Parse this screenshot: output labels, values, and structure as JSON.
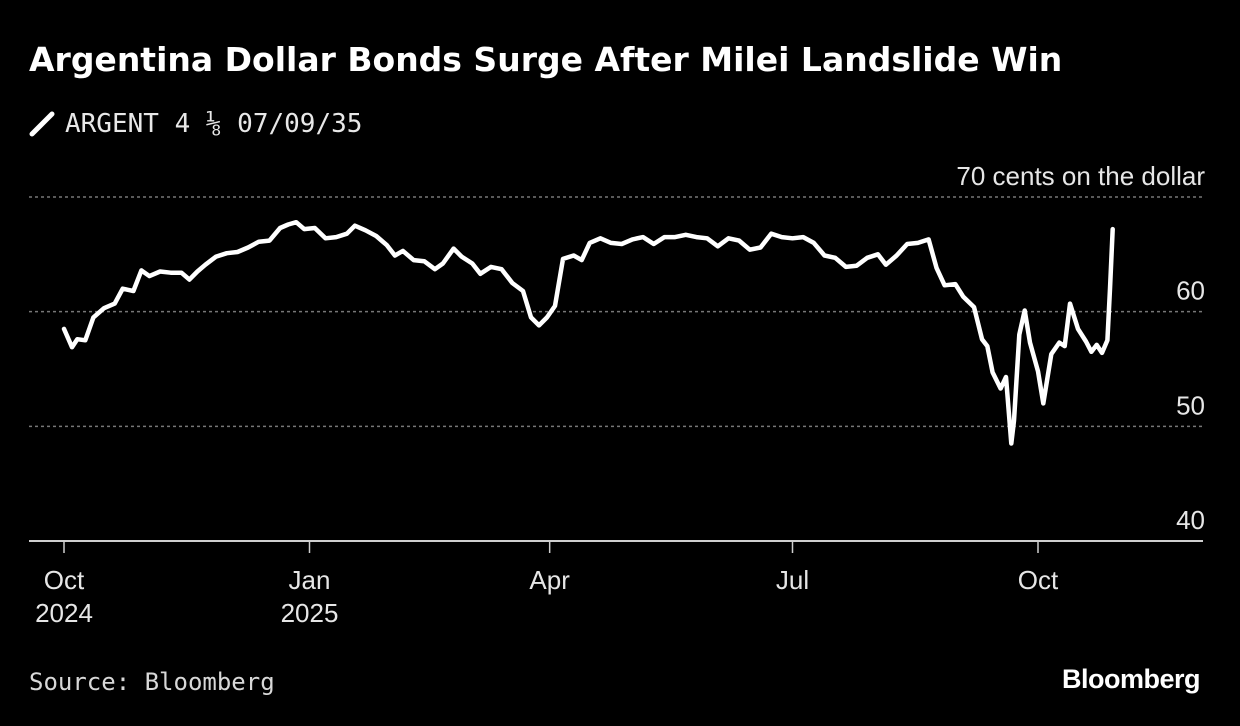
{
  "header": {
    "title": "Argentina Dollar Bonds Surge After Milei Landslide Win"
  },
  "legend": {
    "label": "ARGENT 4 ⅛ 07/09/35"
  },
  "footer": {
    "source": "Source: Bloomberg",
    "brand": "Bloomberg"
  },
  "colors": {
    "background": "#000000",
    "line": "#ffffff",
    "grid": "#777777"
  },
  "chart_data": {
    "type": "line",
    "title": "Argentina Dollar Bonds Surge After Milei Landslide Win",
    "unit_label": "70 cents on the dollar",
    "ylim": [
      40,
      70
    ],
    "yticks": [
      {
        "value": 70,
        "label": "70 cents on the dollar"
      },
      {
        "value": 60,
        "label": "60"
      },
      {
        "value": 50,
        "label": "50"
      },
      {
        "value": 40,
        "label": "40"
      }
    ],
    "grid": "horizontal dotted",
    "xlim": [
      "2024-09-15",
      "2025-11-15"
    ],
    "xticks": [
      {
        "date": "2024-10-01",
        "label": [
          "Oct",
          "2024"
        ]
      },
      {
        "date": "2025-01-01",
        "label": [
          "Jan",
          "2025"
        ]
      },
      {
        "date": "2025-04-01",
        "label": [
          "Apr",
          ""
        ]
      },
      {
        "date": "2025-07-01",
        "label": [
          "Jul",
          ""
        ]
      },
      {
        "date": "2025-10-01",
        "label": [
          "Oct",
          ""
        ]
      }
    ],
    "series": [
      {
        "name": "ARGENT 4 ⅛ 07/09/35",
        "points": [
          [
            "2024-10-01",
            58.5
          ],
          [
            "2024-10-04",
            56.9
          ],
          [
            "2024-10-06",
            57.6
          ],
          [
            "2024-10-09",
            57.5
          ],
          [
            "2024-10-12",
            59.5
          ],
          [
            "2024-10-16",
            60.3
          ],
          [
            "2024-10-20",
            60.7
          ],
          [
            "2024-10-23",
            62.0
          ],
          [
            "2024-10-27",
            61.8
          ],
          [
            "2024-10-30",
            63.6
          ],
          [
            "2024-11-02",
            63.1
          ],
          [
            "2024-11-06",
            63.5
          ],
          [
            "2024-11-10",
            63.4
          ],
          [
            "2024-11-14",
            63.4
          ],
          [
            "2024-11-17",
            62.8
          ],
          [
            "2024-11-20",
            63.5
          ],
          [
            "2024-11-23",
            64.1
          ],
          [
            "2024-11-27",
            64.8
          ],
          [
            "2024-12-01",
            65.1
          ],
          [
            "2024-12-05",
            65.2
          ],
          [
            "2024-12-09",
            65.6
          ],
          [
            "2024-12-13",
            66.1
          ],
          [
            "2024-12-17",
            66.2
          ],
          [
            "2024-12-21",
            67.3
          ],
          [
            "2024-12-24",
            67.6
          ],
          [
            "2024-12-27",
            67.8
          ],
          [
            "2024-12-30",
            67.2
          ],
          [
            "2025-01-03",
            67.3
          ],
          [
            "2025-01-07",
            66.4
          ],
          [
            "2025-01-11",
            66.5
          ],
          [
            "2025-01-15",
            66.8
          ],
          [
            "2025-01-18",
            67.5
          ],
          [
            "2025-01-22",
            67.1
          ],
          [
            "2025-01-26",
            66.6
          ],
          [
            "2025-01-30",
            65.8
          ],
          [
            "2025-02-02",
            64.9
          ],
          [
            "2025-02-05",
            65.3
          ],
          [
            "2025-02-09",
            64.5
          ],
          [
            "2025-02-13",
            64.4
          ],
          [
            "2025-02-17",
            63.7
          ],
          [
            "2025-02-20",
            64.2
          ],
          [
            "2025-02-24",
            65.5
          ],
          [
            "2025-02-27",
            64.8
          ],
          [
            "2025-03-03",
            64.2
          ],
          [
            "2025-03-06",
            63.3
          ],
          [
            "2025-03-10",
            63.9
          ],
          [
            "2025-03-14",
            63.7
          ],
          [
            "2025-03-18",
            62.5
          ],
          [
            "2025-03-22",
            61.8
          ],
          [
            "2025-03-25",
            59.5
          ],
          [
            "2025-03-28",
            58.8
          ],
          [
            "2025-03-31",
            59.5
          ],
          [
            "2025-04-03",
            60.5
          ],
          [
            "2025-04-06",
            64.6
          ],
          [
            "2025-04-10",
            64.9
          ],
          [
            "2025-04-13",
            64.5
          ],
          [
            "2025-04-16",
            66.0
          ],
          [
            "2025-04-20",
            66.4
          ],
          [
            "2025-04-24",
            66.0
          ],
          [
            "2025-04-28",
            65.9
          ],
          [
            "2025-05-02",
            66.3
          ],
          [
            "2025-05-06",
            66.5
          ],
          [
            "2025-05-10",
            65.9
          ],
          [
            "2025-05-14",
            66.5
          ],
          [
            "2025-05-18",
            66.5
          ],
          [
            "2025-05-22",
            66.7
          ],
          [
            "2025-05-26",
            66.5
          ],
          [
            "2025-05-30",
            66.4
          ],
          [
            "2025-06-03",
            65.7
          ],
          [
            "2025-06-07",
            66.4
          ],
          [
            "2025-06-11",
            66.2
          ],
          [
            "2025-06-15",
            65.4
          ],
          [
            "2025-06-19",
            65.6
          ],
          [
            "2025-06-23",
            66.8
          ],
          [
            "2025-06-27",
            66.5
          ],
          [
            "2025-07-01",
            66.4
          ],
          [
            "2025-07-05",
            66.5
          ],
          [
            "2025-07-09",
            66.0
          ],
          [
            "2025-07-13",
            64.9
          ],
          [
            "2025-07-17",
            64.7
          ],
          [
            "2025-07-21",
            63.9
          ],
          [
            "2025-07-25",
            64.0
          ],
          [
            "2025-07-29",
            64.7
          ],
          [
            "2025-08-02",
            65.0
          ],
          [
            "2025-08-05",
            64.1
          ],
          [
            "2025-08-09",
            64.9
          ],
          [
            "2025-08-13",
            65.9
          ],
          [
            "2025-08-17",
            66.0
          ],
          [
            "2025-08-21",
            66.3
          ],
          [
            "2025-08-24",
            63.8
          ],
          [
            "2025-08-27",
            62.3
          ],
          [
            "2025-08-31",
            62.4
          ],
          [
            "2025-09-03",
            61.3
          ],
          [
            "2025-09-07",
            60.4
          ],
          [
            "2025-09-10",
            57.6
          ],
          [
            "2025-09-12",
            57.0
          ],
          [
            "2025-09-14",
            54.7
          ],
          [
            "2025-09-17",
            53.3
          ],
          [
            "2025-09-19",
            54.3
          ],
          [
            "2025-09-21",
            48.5
          ],
          [
            "2025-09-22",
            50.5
          ],
          [
            "2025-09-24",
            58.0
          ],
          [
            "2025-09-26",
            60.1
          ],
          [
            "2025-09-28",
            57.3
          ],
          [
            "2025-10-01",
            54.8
          ],
          [
            "2025-10-03",
            52.0
          ],
          [
            "2025-10-06",
            56.3
          ],
          [
            "2025-10-09",
            57.3
          ],
          [
            "2025-10-11",
            57.0
          ],
          [
            "2025-10-13",
            60.7
          ],
          [
            "2025-10-16",
            58.5
          ],
          [
            "2025-10-19",
            57.4
          ],
          [
            "2025-10-21",
            56.5
          ],
          [
            "2025-10-23",
            57.1
          ],
          [
            "2025-10-25",
            56.4
          ],
          [
            "2025-10-27",
            57.5
          ],
          [
            "2025-10-28",
            62.0
          ],
          [
            "2025-10-29",
            67.2
          ]
        ]
      }
    ]
  }
}
